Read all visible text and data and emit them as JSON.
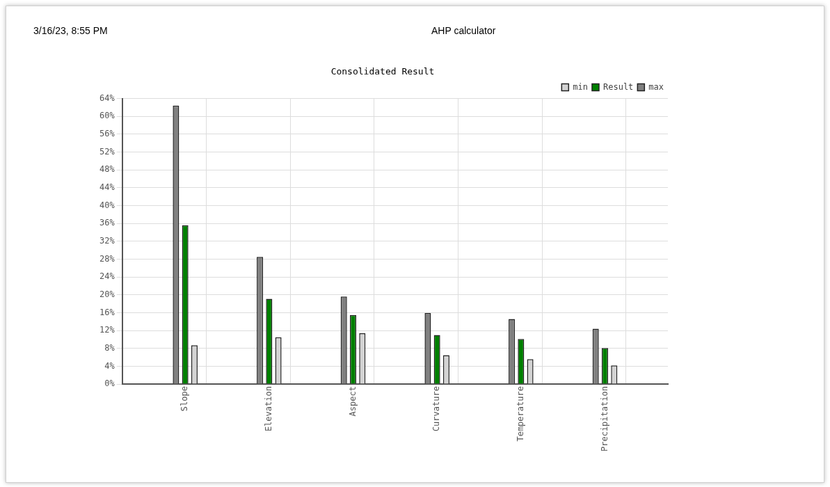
{
  "chart_data": {
    "type": "bar",
    "title": "Consolidated Result",
    "annotations": [
      "3/16/23, 8:55 PM",
      "AHP calculator"
    ],
    "categories": [
      "Slope",
      "Elevation",
      "Aspect",
      "Curvature",
      "Temperature",
      "Precipitation"
    ],
    "series": [
      {
        "name": "min",
        "color": "#d3d3d3",
        "values": [
          8.7,
          10.5,
          11.4,
          6.5,
          5.6,
          4.2
        ]
      },
      {
        "name": "Result",
        "color": "#008000",
        "values": [
          35.6,
          19.1,
          15.5,
          11.0,
          10.1,
          8.1
        ]
      },
      {
        "name": "max",
        "color": "#808080",
        "values": [
          62.4,
          28.5,
          19.6,
          15.9,
          14.6,
          12.4
        ]
      }
    ],
    "ylim": [
      0,
      64
    ],
    "yticks": [
      {
        "value": 0,
        "label": "0%"
      },
      {
        "value": 4,
        "label": "4%"
      },
      {
        "value": 8,
        "label": "8%"
      },
      {
        "value": 12,
        "label": "12%"
      },
      {
        "value": 16,
        "label": "16%"
      },
      {
        "value": 20,
        "label": "20%"
      },
      {
        "value": 24,
        "label": "24%"
      },
      {
        "value": 28,
        "label": "28%"
      },
      {
        "value": 32,
        "label": "32%"
      },
      {
        "value": 36,
        "label": "36%"
      },
      {
        "value": 40,
        "label": "40%"
      },
      {
        "value": 44,
        "label": "44%"
      },
      {
        "value": 48,
        "label": "48%"
      },
      {
        "value": 52,
        "label": "52%"
      },
      {
        "value": 56,
        "label": "56%"
      },
      {
        "value": 60,
        "label": "60%"
      },
      {
        "value": 64,
        "label": "64%"
      }
    ],
    "grid": true,
    "legend": "top right"
  }
}
